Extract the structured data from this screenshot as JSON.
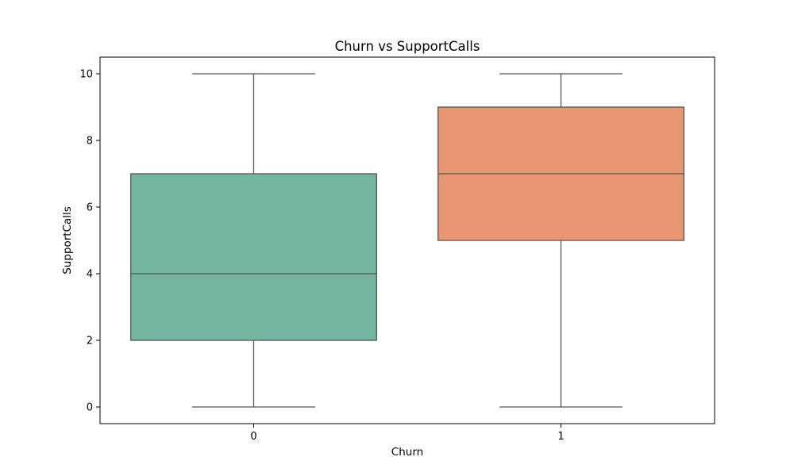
{
  "chart_data": {
    "type": "box",
    "title": "Churn vs SupportCalls",
    "xlabel": "Churn",
    "ylabel": "SupportCalls",
    "categories": [
      "0",
      "1"
    ],
    "ylim": [
      -0.5,
      10.5
    ],
    "y_ticks": [
      0,
      2,
      4,
      6,
      8,
      10
    ],
    "grid": false,
    "legend": "none",
    "colors": [
      "#73b5a1",
      "#e89674"
    ],
    "edge_color": "#555555",
    "boxes": [
      {
        "category": "0",
        "whisker_low": 0,
        "q1": 2,
        "median": 4,
        "q3": 7,
        "whisker_high": 10
      },
      {
        "category": "1",
        "whisker_low": 0,
        "q1": 5,
        "median": 7,
        "q3": 9,
        "whisker_high": 10
      }
    ]
  }
}
